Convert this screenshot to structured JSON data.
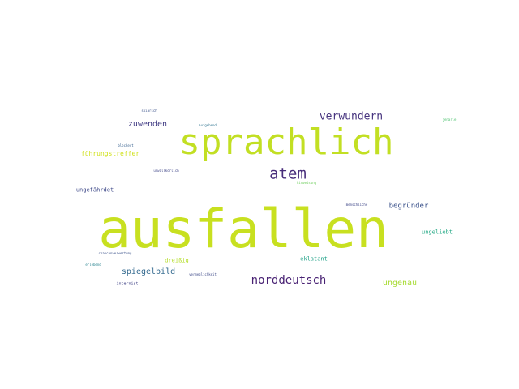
{
  "words": {
    "ausfallen": {
      "text": "ausfallen",
      "color": "#c8e020"
    },
    "sprachlich": {
      "text": "sprachlich",
      "color": "#c2df23"
    },
    "atem": {
      "text": "atem",
      "color": "#472c7a"
    },
    "norddeutsch": {
      "text": "norddeutsch",
      "color": "#482173"
    },
    "verwundern": {
      "text": "verwundern",
      "color": "#46337e"
    },
    "zuwenden": {
      "text": "zuwenden",
      "color": "#433e85"
    },
    "spiegelbild": {
      "text": "spiegelbild",
      "color": "#31688e"
    },
    "ungenau": {
      "text": "ungenau",
      "color": "#a8db34"
    },
    "begruender": {
      "text": "begründer",
      "color": "#3b528b"
    },
    "fuehrungstreffer": {
      "text": "führungstreffer",
      "color": "#d0e11c"
    },
    "ungefaehrdet": {
      "text": "ungefährdet",
      "color": "#3e4989"
    },
    "dreissig": {
      "text": "dreißig",
      "color": "#b5de2b"
    },
    "eklatant": {
      "text": "eklatant",
      "color": "#1fa187"
    },
    "ungeliebt": {
      "text": "ungeliebt",
      "color": "#22a884"
    },
    "internist": {
      "text": "internist",
      "color": "#414487"
    },
    "tw1": {
      "text": "spiarsch",
      "color": "#3b528b"
    },
    "tw2": {
      "text": "aufgehend",
      "color": "#2c728e"
    },
    "tw3": {
      "text": "blockert",
      "color": "#355f8d"
    },
    "tw4": {
      "text": "unwillkorlich",
      "color": "#404688"
    },
    "tw5": {
      "text": "hinweisung",
      "color": "#6ccd5a"
    },
    "tw6": {
      "text": "menschliche",
      "color": "#3f4788"
    },
    "tw7": {
      "text": "jenarie",
      "color": "#4ac16d"
    },
    "tw8": {
      "text": "chancenverwertung",
      "color": "#3b528b"
    },
    "tw9": {
      "text": "erlebend",
      "color": "#26828e"
    },
    "tw10": {
      "text": "vermeglichkeit",
      "color": "#3e4a89"
    }
  }
}
